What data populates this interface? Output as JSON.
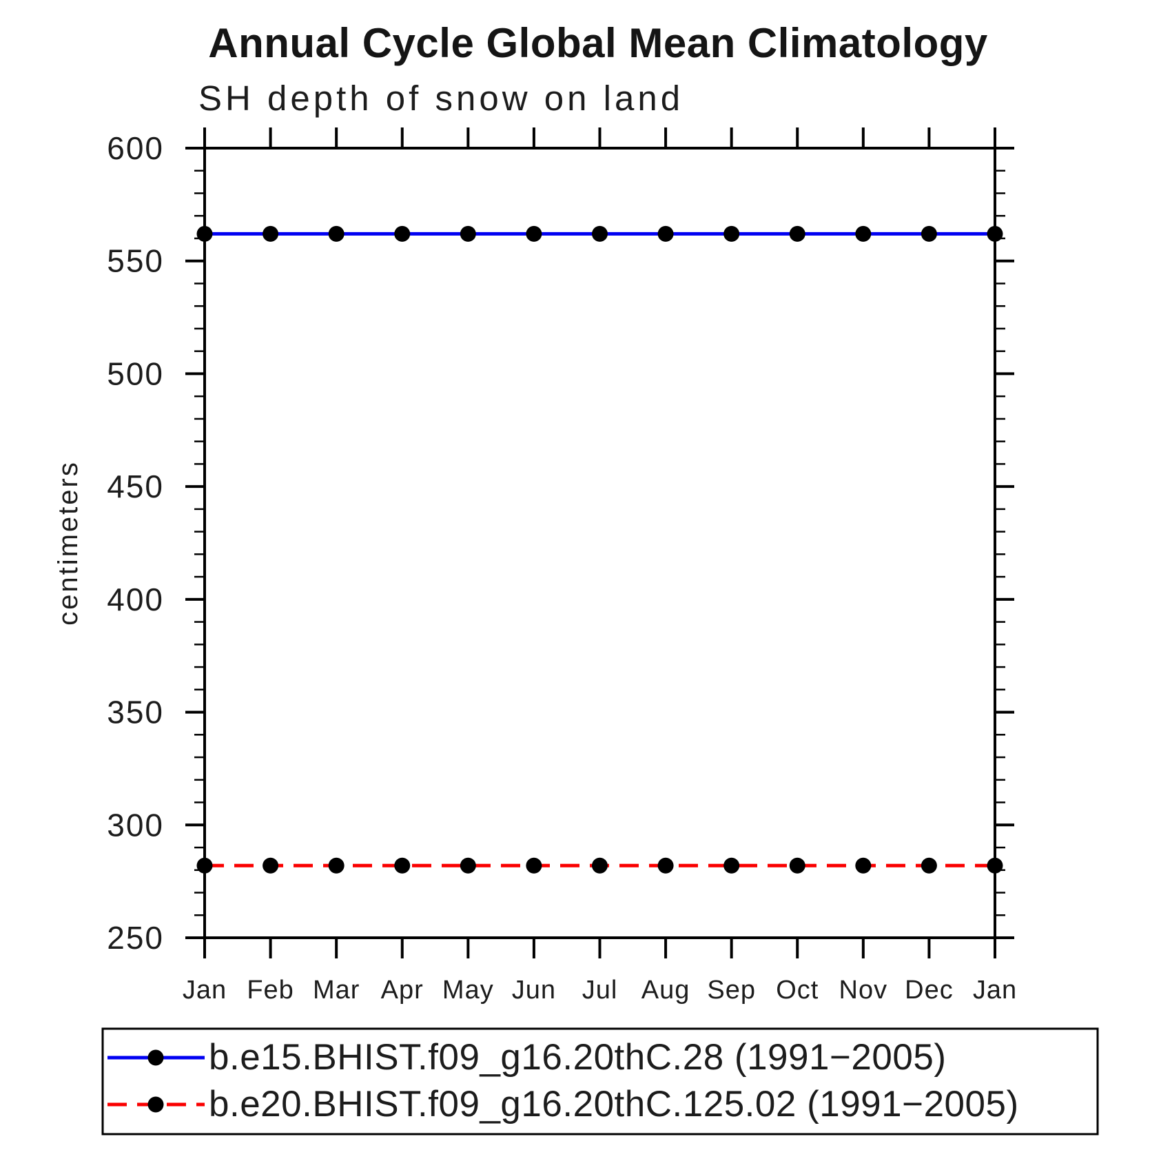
{
  "chart_data": {
    "type": "line",
    "title": "Annual Cycle Global Mean Climatology",
    "subtitle": "SH depth of snow on land",
    "ylabel": "centimeters",
    "xlabel": "",
    "x_labels": [
      "Jan",
      "Feb",
      "Mar",
      "Apr",
      "May",
      "Jun",
      "Jul",
      "Aug",
      "Sep",
      "Oct",
      "Nov",
      "Dec",
      "Jan"
    ],
    "ylim": [
      250,
      600
    ],
    "yticks": [
      250,
      300,
      350,
      400,
      450,
      500,
      550,
      600
    ],
    "ytick_minor_step": 10,
    "grid": false,
    "legend_position": "below-axis",
    "frame_color": "#000000",
    "marker": "filled-circle",
    "marker_color": "#000000",
    "series": [
      {
        "name": "b.e15.BHIST.f09_g16.20thC.28 (1991−2005)",
        "color": "#0000f2",
        "line_style": "solid",
        "values": [
          562,
          562,
          562,
          562,
          562,
          562,
          562,
          562,
          562,
          562,
          562,
          562,
          562
        ]
      },
      {
        "name": "b.e20.BHIST.f09_g16.20thC.125.02 (1991−2005)",
        "color": "#fa0000",
        "line_style": "dashed",
        "values": [
          282,
          282,
          282,
          282,
          282,
          282,
          282,
          282,
          282,
          282,
          282,
          282,
          282
        ]
      }
    ]
  }
}
